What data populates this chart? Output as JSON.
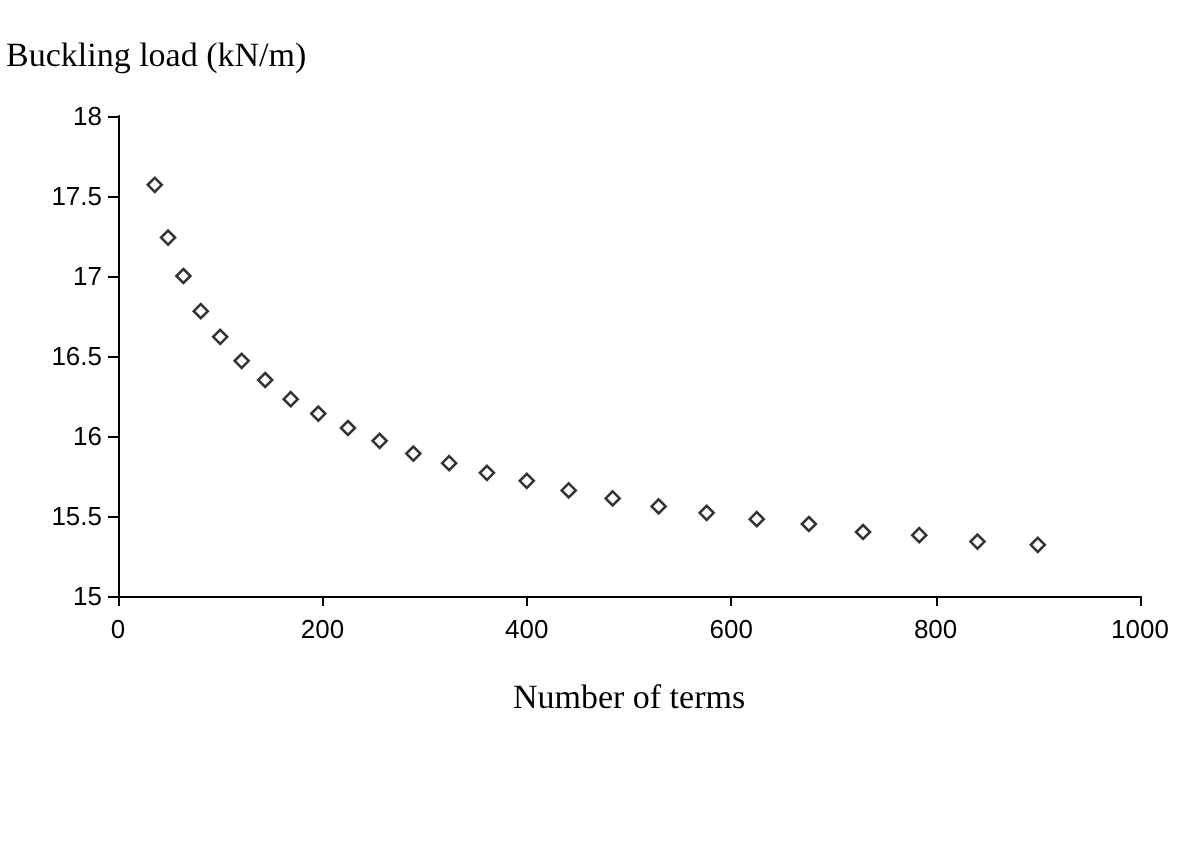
{
  "chart_data": {
    "type": "scatter",
    "ylabel": "Buckling load (kN/m)",
    "xlabel": "Number of terms",
    "x": [
      36,
      49,
      64,
      81,
      100,
      121,
      144,
      169,
      196,
      225,
      256,
      289,
      324,
      361,
      400,
      441,
      484,
      529,
      576,
      625,
      676,
      729,
      784,
      841,
      900
    ],
    "values": [
      17.57,
      17.24,
      17.0,
      16.78,
      16.62,
      16.47,
      16.35,
      16.23,
      16.14,
      16.05,
      15.97,
      15.89,
      15.83,
      15.77,
      15.72,
      15.66,
      15.61,
      15.56,
      15.52,
      15.48,
      15.45,
      15.4,
      15.38,
      15.34,
      15.32
    ],
    "color": "#000000",
    "marker": "diamond",
    "xlim": [
      0,
      1000
    ],
    "xticks": [
      0,
      200,
      400,
      600,
      800,
      1000
    ],
    "ylim": [
      15,
      18
    ],
    "yticks": [
      15,
      15.5,
      16,
      16.5,
      17,
      17.5,
      18
    ],
    "grid": false
  }
}
